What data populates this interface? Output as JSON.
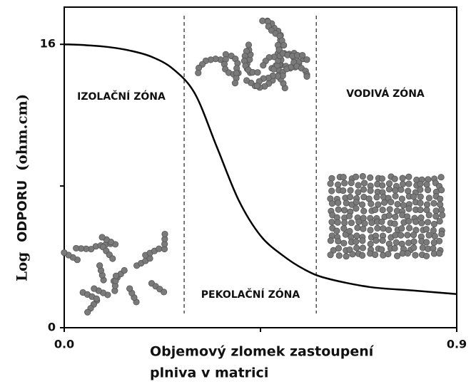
{
  "chart_data": {
    "type": "line",
    "x": [
      0,
      0.05,
      0.1,
      0.15,
      0.2,
      0.25,
      0.3,
      0.35,
      0.4,
      0.45,
      0.5,
      0.55,
      0.6,
      0.7,
      0.8,
      0.9
    ],
    "values": [
      16,
      15.95,
      15.85,
      15.65,
      15.3,
      14.6,
      13.2,
      10.2,
      7.2,
      5.2,
      4.1,
      3.3,
      2.8,
      2.3,
      2.1,
      1.9
    ],
    "color": "#000000",
    "xlim": [
      0,
      0.9
    ],
    "ylim": [
      0,
      18.1
    ],
    "xticks": [
      {
        "value": 0,
        "label": "0.0"
      },
      {
        "value": 0.9,
        "label": "0.9"
      }
    ],
    "yticks": [
      0,
      16
    ],
    "xminorticks": [
      0.45
    ],
    "yminorticks": [
      8
    ],
    "zone_boundaries": [
      0.275,
      0.578
    ],
    "y_label": [
      "Log",
      "ODPORU",
      "(ohm.cm)"
    ],
    "x_label": [
      "Objemový zlomek zastoupení",
      "plniva v matrici"
    ],
    "annotations": [
      "IZOLAČNÍ ZÓNA",
      "PEKOLAČNÍ ZÓNA",
      "VODIVÁ ZÓNA"
    ]
  }
}
